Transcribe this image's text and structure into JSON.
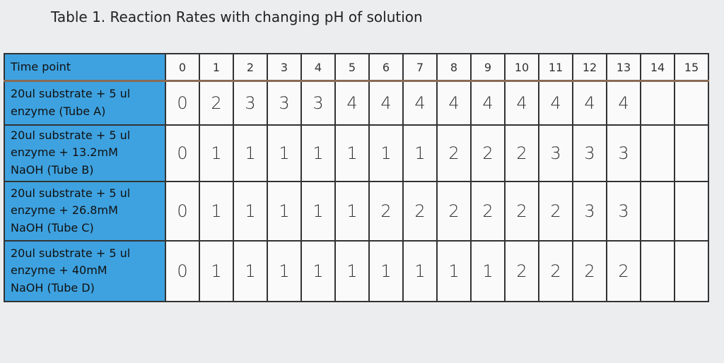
{
  "title": "Table 1. Reaction Rates with changing pH of solution",
  "table": {
    "header": {
      "label": "Time point",
      "columns": [
        0,
        1,
        2,
        3,
        4,
        5,
        6,
        7,
        8,
        9,
        10,
        11,
        12,
        13,
        14,
        15
      ]
    },
    "rows": [
      {
        "label": [
          "20ul substrate + 5 ul",
          "enzyme (Tube A)"
        ],
        "values": [
          0,
          2,
          3,
          3,
          3,
          4,
          4,
          4,
          4,
          4,
          4,
          4,
          4,
          4,
          null,
          null
        ]
      },
      {
        "label": [
          "20ul substrate + 5 ul",
          "enzyme + 13.2mM",
          "NaOH (Tube B)"
        ],
        "values": [
          0,
          1,
          1,
          1,
          1,
          1,
          1,
          1,
          2,
          2,
          2,
          3,
          3,
          3,
          null,
          null
        ]
      },
      {
        "label": [
          "20ul substrate + 5 ul",
          "enzyme + 26.8mM",
          "NaOH (Tube C)"
        ],
        "values": [
          0,
          1,
          1,
          1,
          1,
          1,
          2,
          2,
          2,
          2,
          2,
          2,
          3,
          3,
          null,
          null
        ]
      },
      {
        "label": [
          "20ul substrate + 5 ul",
          "enzyme + 40mM",
          "NaOH (Tube D)"
        ],
        "values": [
          0,
          1,
          1,
          1,
          1,
          1,
          1,
          1,
          1,
          1,
          2,
          2,
          2,
          2,
          null,
          null
        ]
      }
    ]
  }
}
